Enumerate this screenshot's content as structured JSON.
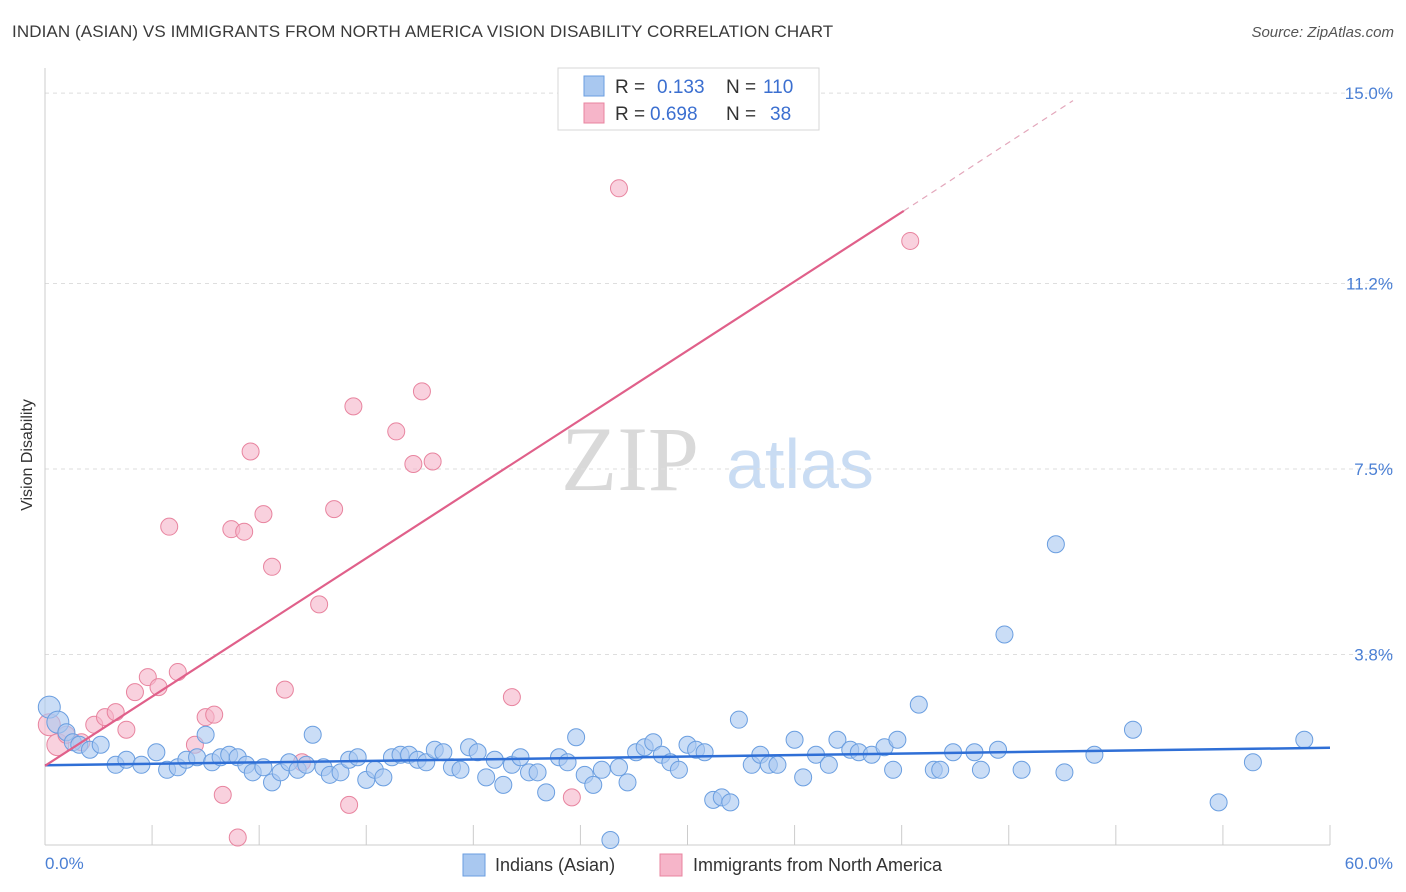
{
  "header": {
    "title": "INDIAN (ASIAN) VS IMMIGRANTS FROM NORTH AMERICA VISION DISABILITY CORRELATION CHART",
    "source": "Source: ZipAtlas.com"
  },
  "watermark": {
    "zip": "ZIP",
    "atlas": "atlas"
  },
  "chart_data": {
    "type": "scatter",
    "title": "INDIAN (ASIAN) VS IMMIGRANTS FROM NORTH AMERICA VISION DISABILITY CORRELATION CHART",
    "ylabel": "Vision Disability",
    "xlabel": "",
    "xlim": [
      0,
      60
    ],
    "ylim": [
      0,
      15.5
    ],
    "x_tick_labels": {
      "min": "0.0%",
      "max": "60.0%"
    },
    "y_ticks": [
      3.8,
      7.5,
      11.2,
      15.0
    ],
    "y_tick_labels": [
      "3.8%",
      "7.5%",
      "11.2%",
      "15.0%"
    ],
    "stats": [
      {
        "series": "Indians (Asian)",
        "r_label": "R =",
        "r": "0.133",
        "n_label": "N =",
        "n": "110"
      },
      {
        "series": "Immigrants from North America",
        "r_label": "R =",
        "r": "0.698",
        "n_label": "N =",
        "n": "38"
      }
    ],
    "legend": [
      "Indians (Asian)",
      "Immigrants from North America"
    ],
    "colors": {
      "blue_fill": "#a9c8f0",
      "blue_stroke": "#6a9ee0",
      "blue_line": "#2f6fd6",
      "pink_fill": "#f6b5c9",
      "pink_stroke": "#e8849f",
      "pink_line": "#e0608a"
    },
    "series": [
      {
        "name": "Indians (Asian)",
        "trend": {
          "x": [
            0,
            60
          ],
          "y": [
            1.59,
            1.94
          ]
        },
        "points": [
          [
            0.2,
            2.75
          ],
          [
            0.6,
            2.45
          ],
          [
            1.0,
            2.25
          ],
          [
            1.3,
            2.05
          ],
          [
            1.6,
            2.0
          ],
          [
            2.1,
            1.9
          ],
          [
            2.6,
            2.0
          ],
          [
            3.3,
            1.6
          ],
          [
            3.8,
            1.7
          ],
          [
            4.5,
            1.6
          ],
          [
            5.2,
            1.85
          ],
          [
            5.7,
            1.5
          ],
          [
            6.2,
            1.55
          ],
          [
            6.6,
            1.7
          ],
          [
            7.1,
            1.75
          ],
          [
            7.5,
            2.2
          ],
          [
            7.8,
            1.65
          ],
          [
            8.2,
            1.75
          ],
          [
            8.6,
            1.8
          ],
          [
            9.0,
            1.75
          ],
          [
            9.4,
            1.6
          ],
          [
            9.7,
            1.45
          ],
          [
            10.2,
            1.55
          ],
          [
            10.6,
            1.25
          ],
          [
            11.0,
            1.45
          ],
          [
            11.4,
            1.65
          ],
          [
            11.8,
            1.5
          ],
          [
            12.2,
            1.6
          ],
          [
            12.5,
            2.2
          ],
          [
            13.0,
            1.55
          ],
          [
            13.3,
            1.4
          ],
          [
            13.8,
            1.45
          ],
          [
            14.2,
            1.7
          ],
          [
            14.6,
            1.75
          ],
          [
            15.0,
            1.3
          ],
          [
            15.4,
            1.5
          ],
          [
            15.8,
            1.35
          ],
          [
            16.2,
            1.75
          ],
          [
            16.6,
            1.8
          ],
          [
            17.0,
            1.8
          ],
          [
            17.4,
            1.7
          ],
          [
            17.8,
            1.65
          ],
          [
            18.2,
            1.9
          ],
          [
            18.6,
            1.85
          ],
          [
            19.0,
            1.55
          ],
          [
            19.4,
            1.5
          ],
          [
            19.8,
            1.95
          ],
          [
            20.2,
            1.85
          ],
          [
            20.6,
            1.35
          ],
          [
            21.0,
            1.7
          ],
          [
            21.4,
            1.2
          ],
          [
            21.8,
            1.6
          ],
          [
            22.2,
            1.75
          ],
          [
            22.6,
            1.45
          ],
          [
            23.0,
            1.45
          ],
          [
            23.4,
            1.05
          ],
          [
            24.0,
            1.75
          ],
          [
            24.4,
            1.65
          ],
          [
            24.8,
            2.15
          ],
          [
            25.2,
            1.4
          ],
          [
            25.6,
            1.2
          ],
          [
            26.0,
            1.5
          ],
          [
            26.4,
            0.1
          ],
          [
            26.8,
            1.55
          ],
          [
            27.2,
            1.25
          ],
          [
            27.6,
            1.85
          ],
          [
            28.0,
            1.95
          ],
          [
            28.4,
            2.05
          ],
          [
            28.8,
            1.8
          ],
          [
            29.2,
            1.65
          ],
          [
            29.6,
            1.5
          ],
          [
            30.0,
            2.0
          ],
          [
            30.4,
            1.9
          ],
          [
            30.8,
            1.85
          ],
          [
            31.2,
            0.9
          ],
          [
            31.6,
            0.95
          ],
          [
            32.0,
            0.85
          ],
          [
            32.4,
            2.5
          ],
          [
            33.0,
            1.6
          ],
          [
            33.4,
            1.8
          ],
          [
            33.8,
            1.6
          ],
          [
            34.2,
            1.6
          ],
          [
            35.0,
            2.1
          ],
          [
            35.4,
            1.35
          ],
          [
            36.0,
            1.8
          ],
          [
            36.6,
            1.6
          ],
          [
            37.0,
            2.1
          ],
          [
            37.6,
            1.9
          ],
          [
            38.0,
            1.85
          ],
          [
            38.6,
            1.8
          ],
          [
            39.2,
            1.95
          ],
          [
            39.6,
            1.5
          ],
          [
            39.8,
            2.1
          ],
          [
            40.8,
            2.8
          ],
          [
            41.5,
            1.5
          ],
          [
            41.8,
            1.5
          ],
          [
            42.4,
            1.85
          ],
          [
            43.4,
            1.85
          ],
          [
            43.7,
            1.5
          ],
          [
            44.5,
            1.9
          ],
          [
            44.8,
            4.2
          ],
          [
            45.6,
            1.5
          ],
          [
            47.2,
            6.0
          ],
          [
            47.6,
            1.45
          ],
          [
            49.0,
            1.8
          ],
          [
            50.8,
            2.3
          ],
          [
            54.8,
            0.85
          ],
          [
            56.4,
            1.65
          ],
          [
            58.8,
            2.1
          ]
        ]
      },
      {
        "name": "Immigrants from North America",
        "trend": {
          "x": [
            0,
            40.1
          ],
          "y": [
            1.58,
            12.65
          ],
          "dashed_extension": {
            "x": [
              40.1,
              48.0
            ],
            "y": [
              12.65,
              14.85
            ]
          }
        },
        "points": [
          [
            0.2,
            2.4
          ],
          [
            0.6,
            2.0
          ],
          [
            1.0,
            2.2
          ],
          [
            1.7,
            2.05
          ],
          [
            2.3,
            2.4
          ],
          [
            2.8,
            2.55
          ],
          [
            3.3,
            2.65
          ],
          [
            3.8,
            2.3
          ],
          [
            4.2,
            3.05
          ],
          [
            4.8,
            3.35
          ],
          [
            5.3,
            3.15
          ],
          [
            5.8,
            6.35
          ],
          [
            6.2,
            3.45
          ],
          [
            7.0,
            2.0
          ],
          [
            7.5,
            2.55
          ],
          [
            7.9,
            2.6
          ],
          [
            8.3,
            1.0
          ],
          [
            8.7,
            6.3
          ],
          [
            9.0,
            0.15
          ],
          [
            9.3,
            6.25
          ],
          [
            9.6,
            7.85
          ],
          [
            10.2,
            6.6
          ],
          [
            10.6,
            5.55
          ],
          [
            11.2,
            3.1
          ],
          [
            12.0,
            1.65
          ],
          [
            12.8,
            4.8
          ],
          [
            13.5,
            6.7
          ],
          [
            14.2,
            0.8
          ],
          [
            14.4,
            8.75
          ],
          [
            16.4,
            8.25
          ],
          [
            17.2,
            7.6
          ],
          [
            17.6,
            9.05
          ],
          [
            18.1,
            7.65
          ],
          [
            21.8,
            2.95
          ],
          [
            24.6,
            0.95
          ],
          [
            26.8,
            13.1
          ],
          [
            40.4,
            12.05
          ]
        ]
      }
    ]
  }
}
